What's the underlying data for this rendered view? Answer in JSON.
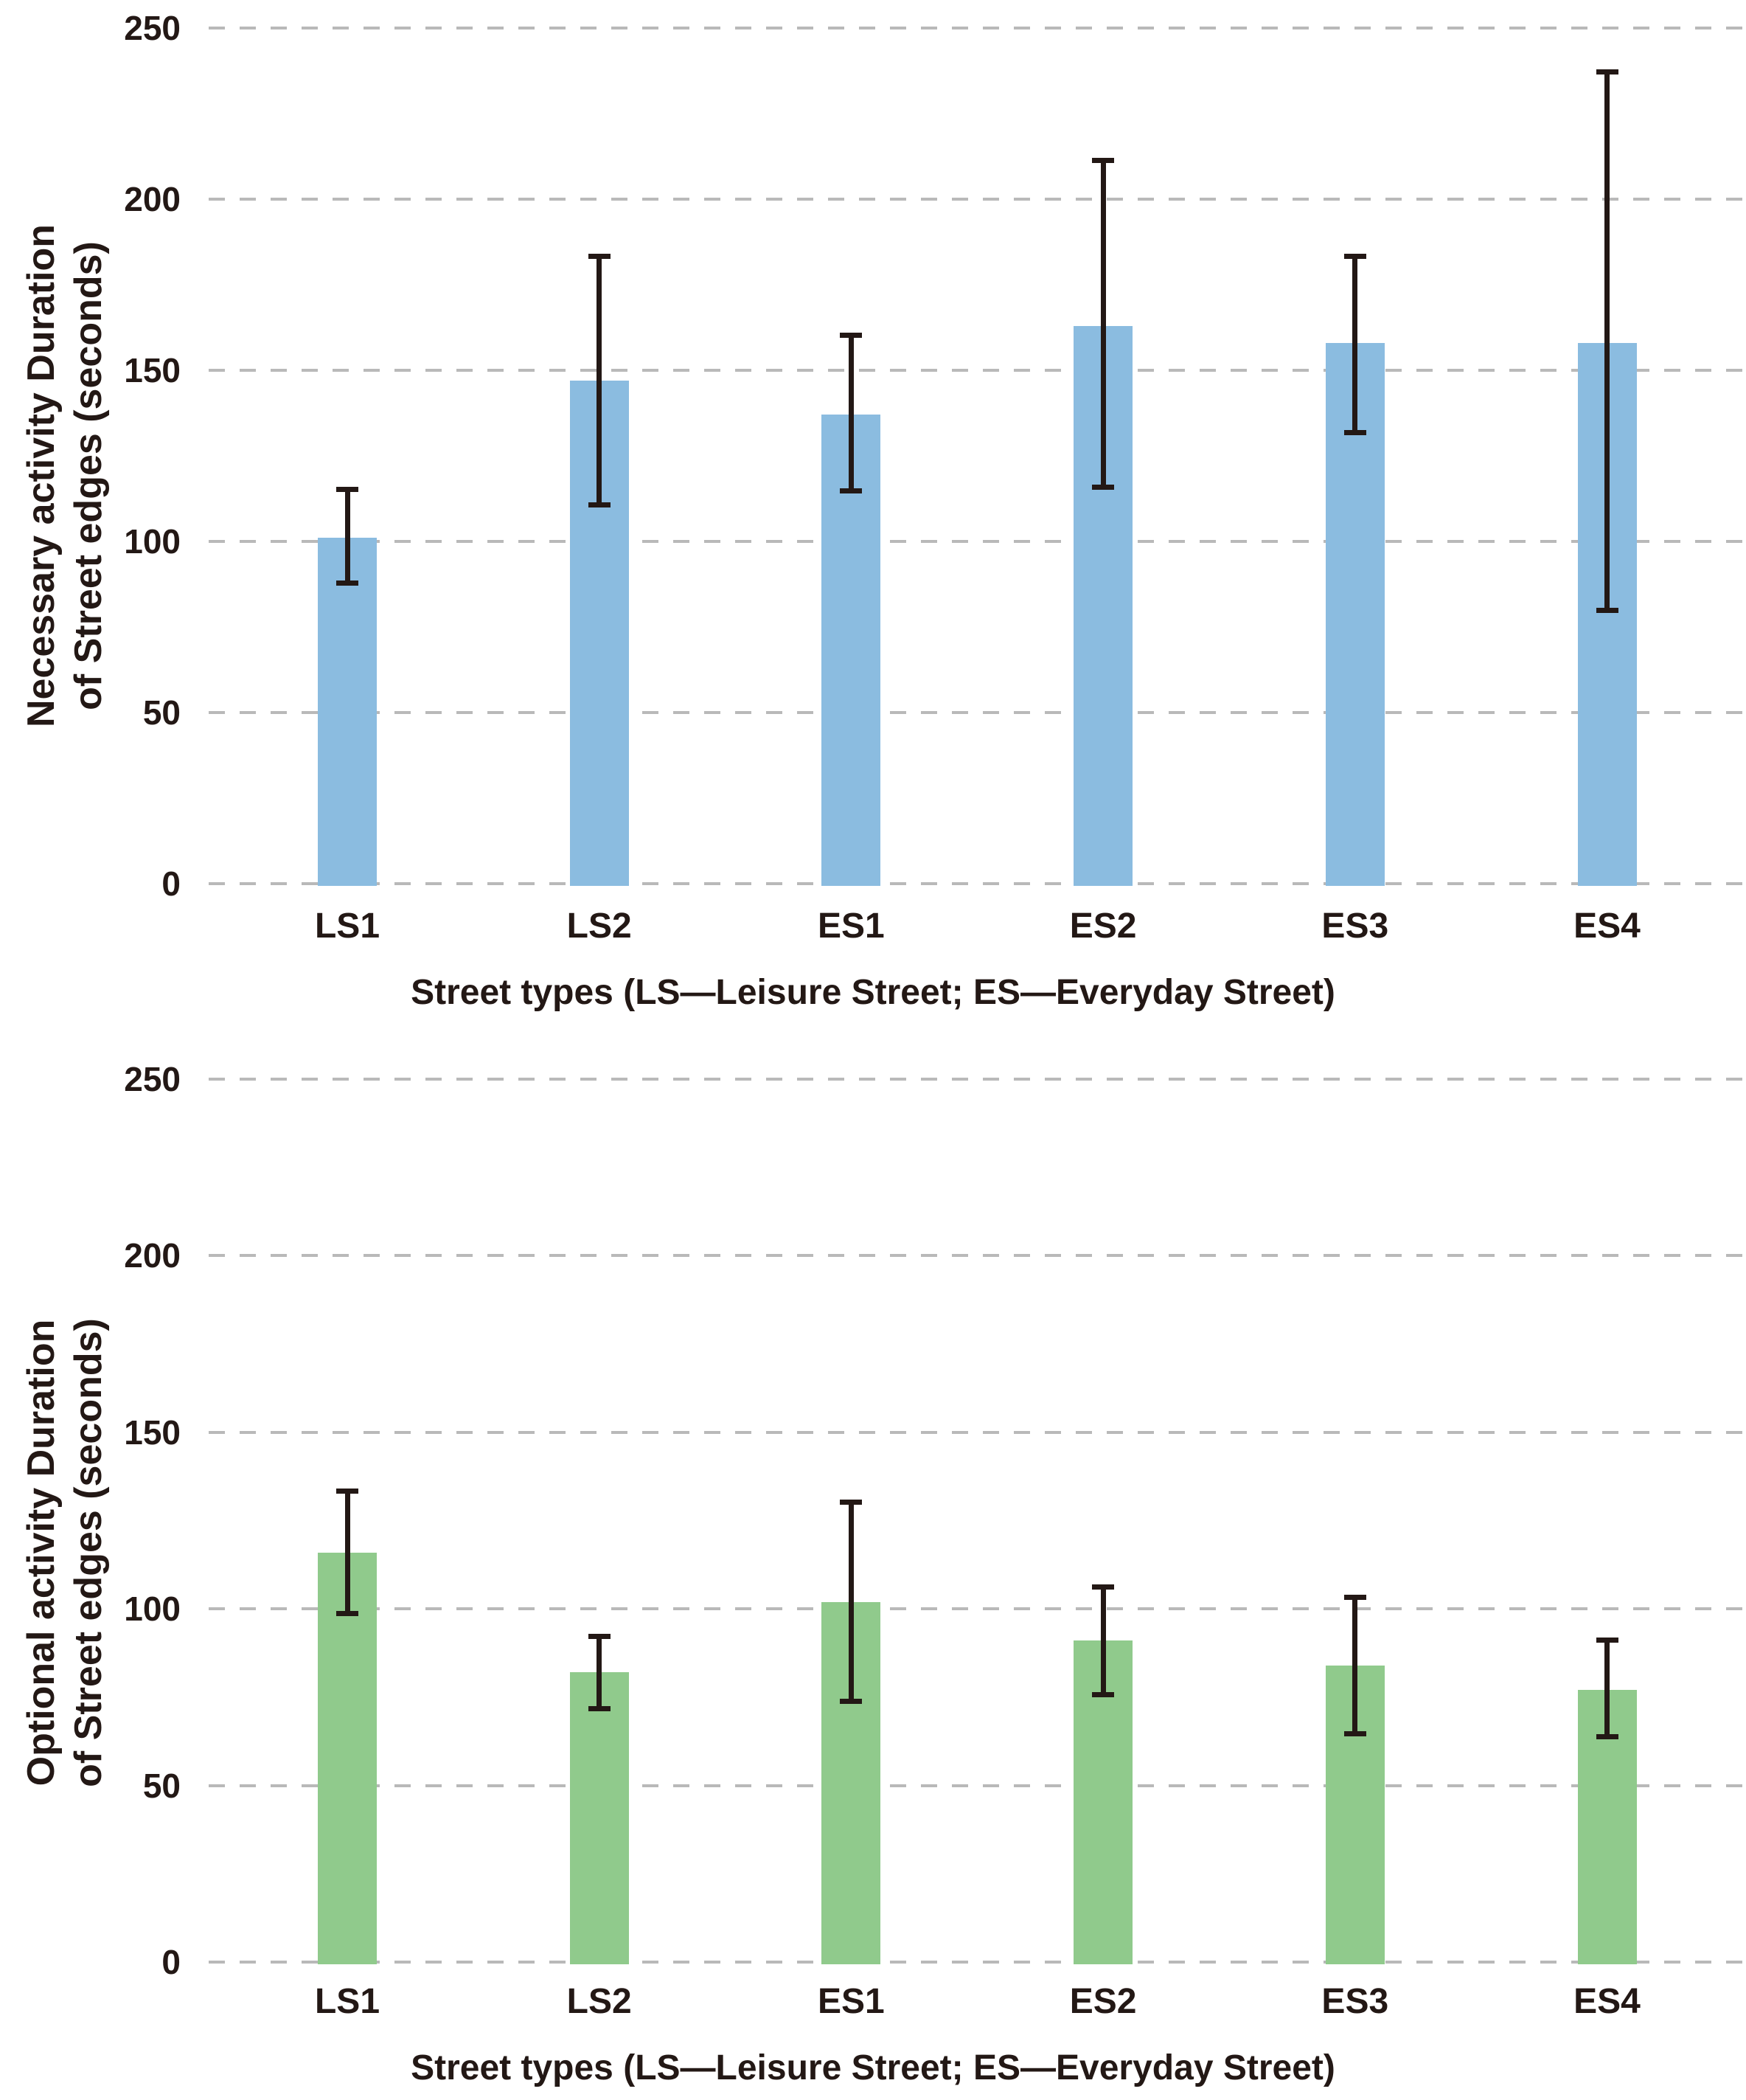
{
  "figure": {
    "background": "#ffffff",
    "text_color": "#231815",
    "gridline_color": "#b9b9b9",
    "gridline_style": "dashed"
  },
  "chart_data": [
    {
      "type": "bar",
      "title": "",
      "ylabel_line1": "Necessary activity Duration",
      "ylabel_line2": "of Street edges (seconds)",
      "xlabel": "Street types (LS—Leisure Street; ES—Everyday Street)",
      "categories": [
        "LS1",
        "LS2",
        "ES1",
        "ES2",
        "ES3",
        "ES4"
      ],
      "values": [
        101,
        147,
        137,
        163,
        158,
        158
      ],
      "error_low": [
        87,
        110,
        114,
        115,
        131,
        79
      ],
      "error_high": [
        116,
        184,
        161,
        212,
        184,
        238
      ],
      "yticks": [
        250,
        200,
        150,
        100,
        50,
        0
      ],
      "ylim": [
        0,
        250
      ],
      "bar_color": "#8bbce0",
      "error_color": "#231815",
      "grid": "horizontal dashed",
      "legend": "none"
    },
    {
      "type": "bar",
      "title": "",
      "ylabel_line1": "Optional activity Duration",
      "ylabel_line2": "of Street edges (seconds)",
      "xlabel": "Street types (LS—Leisure Street; ES—Everyday Street)",
      "categories": [
        "LS1",
        "LS2",
        "ES1",
        "ES2",
        "ES3",
        "ES4"
      ],
      "values": [
        116,
        82,
        102,
        91,
        84,
        77
      ],
      "error_low": [
        98,
        71,
        73,
        75,
        64,
        63
      ],
      "error_high": [
        134,
        93,
        131,
        107,
        104,
        92
      ],
      "yticks": [
        250,
        200,
        150,
        100,
        50,
        0
      ],
      "ylim": [
        0,
        250
      ],
      "bar_color": "#90ca8c",
      "error_color": "#231815",
      "grid": "horizontal dashed",
      "legend": "none"
    }
  ]
}
